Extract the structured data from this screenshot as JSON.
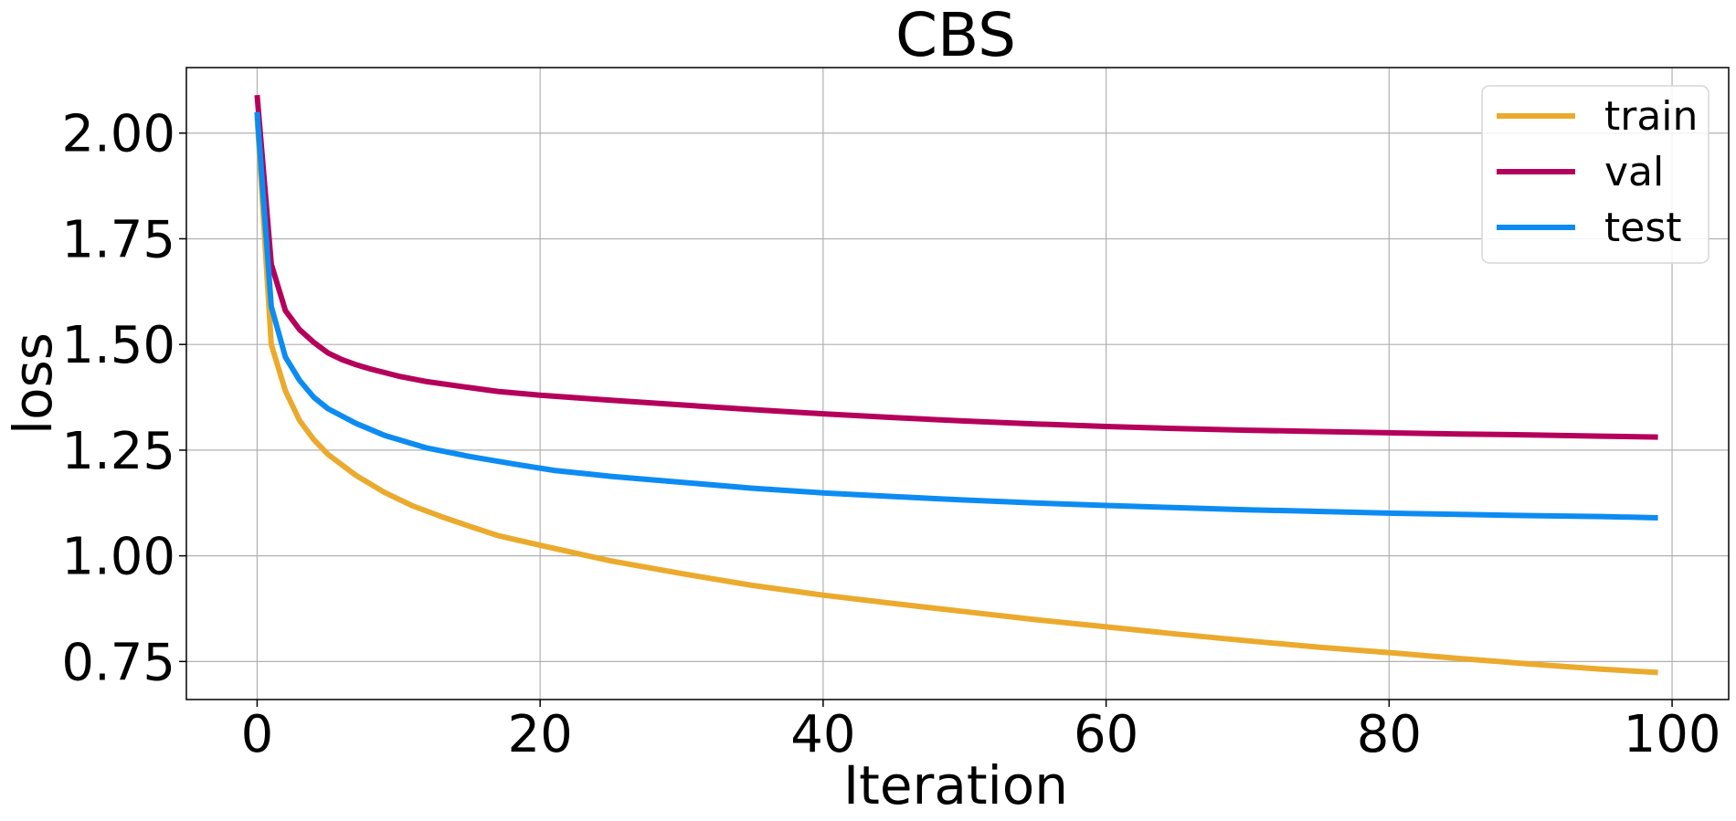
{
  "chart_data": {
    "type": "line",
    "title": "CBS",
    "xlabel": "Iteration",
    "ylabel": "loss",
    "xlim": [
      -5,
      104
    ],
    "ylim": [
      0.66,
      2.155
    ],
    "xticks": [
      0,
      20,
      40,
      60,
      80,
      100
    ],
    "yticks": [
      0.75,
      1.0,
      1.25,
      1.5,
      1.75,
      2.0
    ],
    "xtick_labels": [
      "0",
      "20",
      "40",
      "60",
      "80",
      "100"
    ],
    "ytick_labels": [
      "0.75",
      "1.00",
      "1.25",
      "1.50",
      "1.75",
      "2.00"
    ],
    "grid": true,
    "legend_position": "top-right",
    "series": [
      {
        "name": "train",
        "color": "#ebaa2d",
        "x": [
          0,
          1,
          2,
          3,
          4,
          5,
          7,
          9,
          11,
          13,
          15,
          17,
          20,
          25,
          30,
          35,
          40,
          45,
          50,
          55,
          60,
          65,
          70,
          75,
          80,
          85,
          90,
          95,
          99
        ],
        "values": [
          2.04,
          1.5,
          1.39,
          1.32,
          1.275,
          1.24,
          1.19,
          1.15,
          1.118,
          1.093,
          1.07,
          1.048,
          1.025,
          0.988,
          0.958,
          0.93,
          0.907,
          0.887,
          0.868,
          0.849,
          0.832,
          0.815,
          0.799,
          0.784,
          0.771,
          0.757,
          0.744,
          0.732,
          0.724
        ]
      },
      {
        "name": "val",
        "color": "#b5005b",
        "x": [
          0,
          1,
          2,
          3,
          4,
          5,
          6,
          7,
          8,
          10,
          12,
          15,
          17,
          20,
          25,
          30,
          35,
          40,
          45,
          50,
          55,
          60,
          65,
          70,
          75,
          80,
          85,
          90,
          95,
          99
        ],
        "values": [
          2.09,
          1.69,
          1.58,
          1.535,
          1.505,
          1.48,
          1.464,
          1.452,
          1.442,
          1.425,
          1.412,
          1.398,
          1.389,
          1.38,
          1.368,
          1.357,
          1.346,
          1.336,
          1.327,
          1.319,
          1.312,
          1.306,
          1.301,
          1.297,
          1.294,
          1.291,
          1.288,
          1.286,
          1.283,
          1.281
        ]
      },
      {
        "name": "test",
        "color": "#0c8cf2",
        "x": [
          0,
          1,
          2,
          3,
          4,
          5,
          7,
          9,
          12,
          15,
          18,
          21,
          25,
          30,
          35,
          40,
          45,
          50,
          55,
          60,
          65,
          70,
          75,
          80,
          85,
          90,
          95,
          99
        ],
        "values": [
          2.05,
          1.59,
          1.47,
          1.415,
          1.375,
          1.348,
          1.313,
          1.285,
          1.255,
          1.235,
          1.218,
          1.202,
          1.188,
          1.174,
          1.16,
          1.149,
          1.14,
          1.132,
          1.125,
          1.119,
          1.114,
          1.109,
          1.105,
          1.101,
          1.098,
          1.095,
          1.093,
          1.09
        ]
      }
    ]
  }
}
